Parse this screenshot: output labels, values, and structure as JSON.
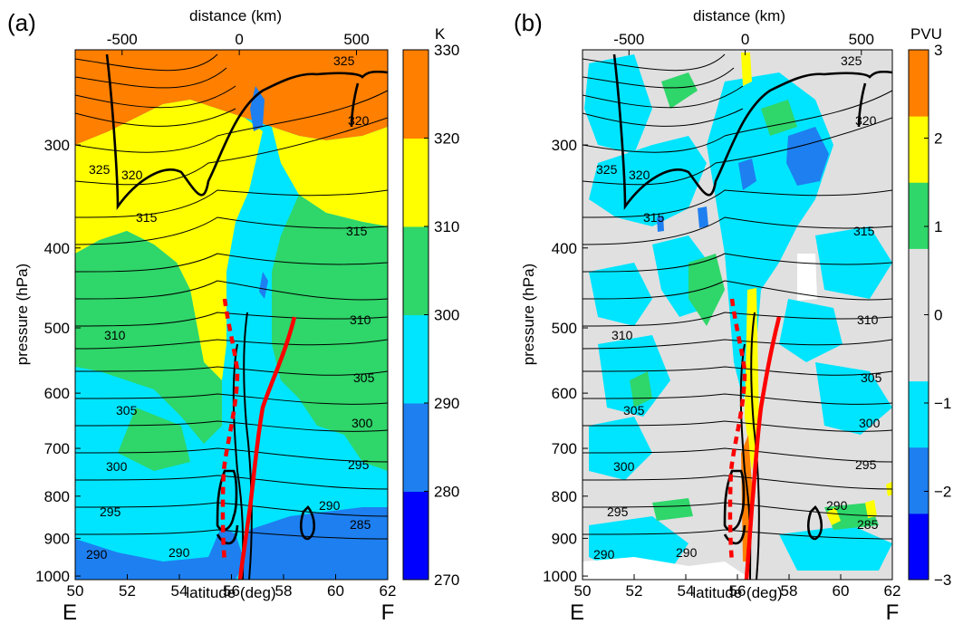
{
  "chart_data": [
    {
      "type": "heatmap",
      "panel_label": "(a)",
      "top_axis_label": "distance (km)",
      "top_ticks": [
        "-500",
        "0",
        "500"
      ],
      "xlabel": "latitude (deg)",
      "x_ticks": [
        "50",
        "52",
        "54",
        "56",
        "58",
        "60",
        "62"
      ],
      "xlim": [
        50,
        62
      ],
      "ylabel": "pressure (hPa)",
      "y_ticks": [
        "300",
        "400",
        "500",
        "600",
        "700",
        "800",
        "900",
        "1000"
      ],
      "ylim": [
        1010,
        230
      ],
      "y_scale": "log",
      "colorbar_unit": "K",
      "colorbar_ticks": [
        "270",
        "280",
        "290",
        "300",
        "310",
        "320",
        "330"
      ],
      "colorbar_levels": [
        270,
        280,
        290,
        300,
        310,
        320,
        330
      ],
      "colorbar_colors": [
        "#0000ff",
        "#1e7ff0",
        "#00e5ff",
        "#2fd66a",
        "#ffff00",
        "#ff7f00"
      ],
      "contour_labels": [
        "325",
        "325",
        "320",
        "320",
        "315",
        "315",
        "310",
        "310",
        "305",
        "305",
        "300",
        "300",
        "295",
        "295",
        "290",
        "290",
        "290",
        "285"
      ],
      "corner_left": "E",
      "corner_right": "F"
    },
    {
      "type": "heatmap",
      "panel_label": "(b)",
      "top_axis_label": "distance (km)",
      "top_ticks": [
        "-500",
        "0",
        "500"
      ],
      "xlabel": "latitude (deg)",
      "x_ticks": [
        "50",
        "52",
        "54",
        "56",
        "58",
        "60",
        "62"
      ],
      "xlim": [
        50,
        62
      ],
      "ylabel": "pressure (hPa)",
      "y_ticks": [
        "300",
        "400",
        "500",
        "600",
        "700",
        "800",
        "900",
        "1000"
      ],
      "ylim": [
        1010,
        230
      ],
      "y_scale": "log",
      "colorbar_unit": "PVU",
      "colorbar_ticks": [
        "3",
        "2",
        "1",
        "0",
        "−1",
        "−2",
        "−3"
      ],
      "colorbar_levels": [
        -3,
        -2,
        -1,
        0,
        1,
        2,
        3
      ],
      "colorbar_colors": [
        "#0000ff",
        "#1e7ff0",
        "#00e5ff",
        "#e0e0e0",
        "#e0e0e0",
        "#2fd66a",
        "#ffff00",
        "#ff7f00"
      ],
      "contour_labels": [
        "325",
        "325",
        "320",
        "320",
        "315",
        "315",
        "310",
        "310",
        "305",
        "305",
        "300",
        "300",
        "295",
        "295",
        "290",
        "290",
        "290",
        "285"
      ],
      "corner_left": "E",
      "corner_right": "F"
    }
  ]
}
